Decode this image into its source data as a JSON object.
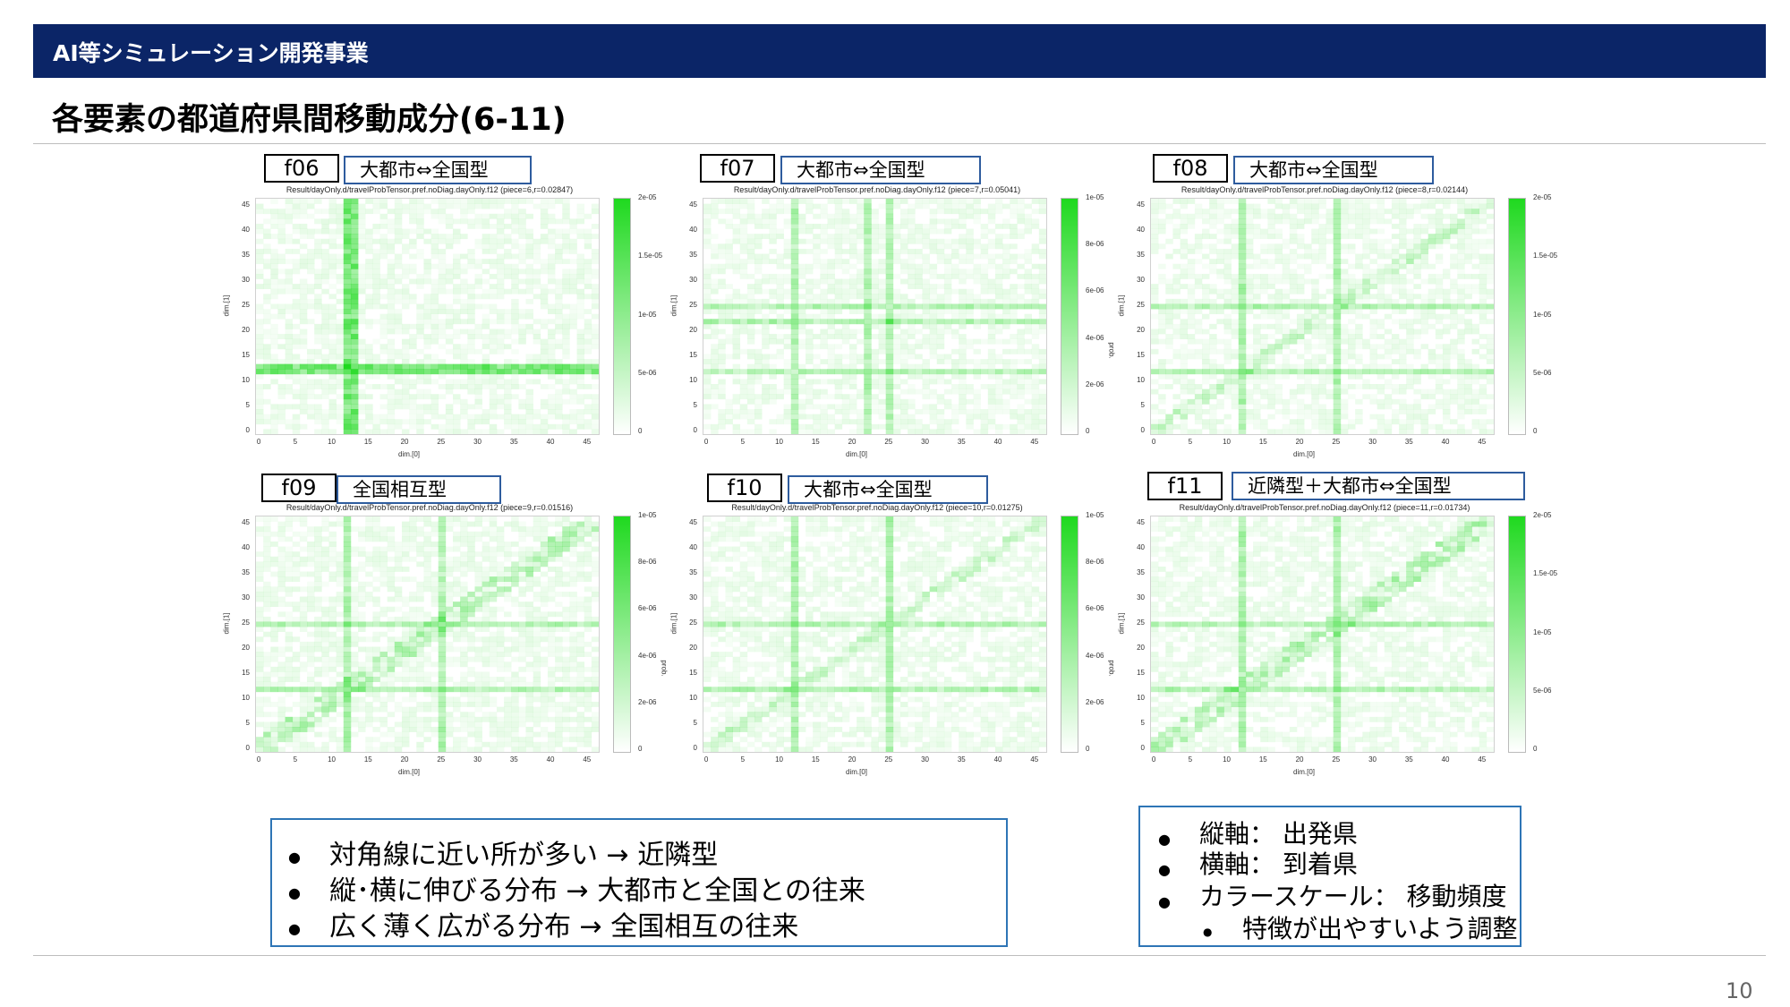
{
  "header": {
    "section_title": "AI等シミュレーション開発事業"
  },
  "page_title": "各要素の都道府県間移動成分(6-11)",
  "panels": [
    {
      "id": "f06",
      "type": "大都市⇔全国型",
      "caption": "Result/dayOnly.d/travelProbTensor.pref.noDiag.dayOnly.f12 (piece=6,r=0.02847)",
      "cbar_ticks": [
        "2e-05",
        "1.5e-05",
        "1e-05",
        "5e-06",
        "0"
      ],
      "cbar_name": ""
    },
    {
      "id": "f07",
      "type": "大都市⇔全国型",
      "caption": "Result/dayOnly.d/travelProbTensor.pref.noDiag.dayOnly.f12 (piece=7,r=0.05041)",
      "cbar_ticks": [
        "1e-05",
        "8e-06",
        "6e-06",
        "4e-06",
        "2e-06",
        "0"
      ],
      "cbar_name": "prob."
    },
    {
      "id": "f08",
      "type": "大都市⇔全国型",
      "caption": "Result/dayOnly.d/travelProbTensor.pref.noDiag.dayOnly.f12 (piece=8,r=0.02144)",
      "cbar_ticks": [
        "2e-05",
        "1.5e-05",
        "1e-05",
        "5e-06",
        "0"
      ],
      "cbar_name": ""
    },
    {
      "id": "f09",
      "type": "全国相互型",
      "caption": "Result/dayOnly.d/travelProbTensor.pref.noDiag.dayOnly.f12 (piece=9,r=0.01516)",
      "cbar_ticks": [
        "1e-05",
        "8e-06",
        "6e-06",
        "4e-06",
        "2e-06",
        "0"
      ],
      "cbar_name": "prob."
    },
    {
      "id": "f10",
      "type": "大都市⇔全国型",
      "caption": "Result/dayOnly.d/travelProbTensor.pref.noDiag.dayOnly.f12 (piece=10,r=0.01275)",
      "cbar_ticks": [
        "1e-05",
        "8e-06",
        "6e-06",
        "4e-06",
        "2e-06",
        "0"
      ],
      "cbar_name": "prob."
    },
    {
      "id": "f11",
      "type": "近隣型＋大都市⇔全国型",
      "caption": "Result/dayOnly.d/travelProbTensor.pref.noDiag.dayOnly.f12 (piece=11,r=0.01734)",
      "cbar_ticks": [
        "2e-05",
        "1.5e-05",
        "1e-05",
        "5e-06",
        "0"
      ],
      "cbar_name": ""
    }
  ],
  "axes": {
    "ticks": [
      "0",
      "5",
      "10",
      "15",
      "20",
      "25",
      "30",
      "35",
      "40",
      "45"
    ],
    "xlabel": "dim.[0]",
    "ylabel": "dim.[1]"
  },
  "notes_left": [
    "対角線に近い所が多い → 近隣型",
    "縦･横に伸びる分布 → 大都市と全国との往来",
    "広く薄く広がる分布 → 全国相互の往来"
  ],
  "notes_right": [
    "縦軸： 出発県",
    "横軸： 到着県",
    "カラースケール： 移動頻度",
    "特徴が出やすいよう調整"
  ],
  "colors": {
    "header_bg": "#0b2567",
    "heat": "#1fd91f",
    "box_border": "#2e75b6"
  },
  "page_number": "10"
}
